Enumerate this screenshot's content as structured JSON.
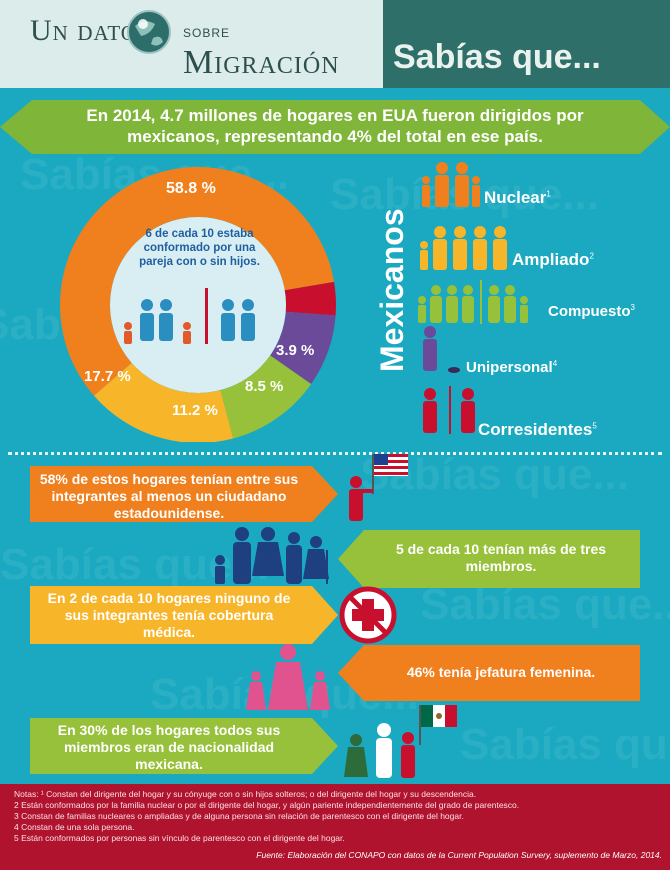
{
  "header": {
    "brand_line1": "Un dato",
    "brand_line2": "sobre",
    "brand_line3": "Migración",
    "title": "Sabías que..."
  },
  "banner": {
    "text": "En 2014, 4.7 millones de hogares en EUA fueron dirigidos por mexicanos, representando 4% del total en ese país."
  },
  "watermark": "Sabías que...",
  "donut": {
    "center_text": "6 de cada 10 estaba conformado por una pareja con o sin hijos.",
    "segments": [
      {
        "name": "Nuclear",
        "label": "58.8 %",
        "value": 58.8,
        "color": "#f07f1d"
      },
      {
        "name": "Ampliado",
        "label": "17.7 %",
        "value": 17.7,
        "color": "#f7b52a"
      },
      {
        "name": "Compuesto",
        "label": "11.2 %",
        "value": 11.2,
        "color": "#97c13a"
      },
      {
        "name": "Unipersonal",
        "label": "8.5 %",
        "value": 8.5,
        "color": "#6b4a9a"
      },
      {
        "name": "Corresidentes",
        "label": "3.9 %",
        "value": 3.9,
        "color": "#c8102e"
      }
    ]
  },
  "legend": {
    "title": "Mexicanos",
    "items": [
      {
        "label": "Nuclear",
        "note": "1",
        "color": "#f07f1d"
      },
      {
        "label": "Ampliado",
        "note": "2",
        "color": "#f7b52a"
      },
      {
        "label": "Compuesto",
        "note": "3",
        "color": "#97c13a"
      },
      {
        "label": "Unipersonal",
        "note": "4",
        "color": "#6b4a9a"
      },
      {
        "label": "Corresidentes",
        "note": "5",
        "color": "#c8102e"
      }
    ]
  },
  "facts": [
    {
      "text": "58% de estos hogares tenían entre sus integrantes al menos un ciudadano estadounidense.",
      "color": "#f07f1d"
    },
    {
      "text": "5 de cada 10 tenían más de tres miembros.",
      "color": "#97c13a"
    },
    {
      "text": "En 2 de cada 10 hogares ninguno de sus integrantes tenía cobertura médica.",
      "color": "#f7b52a"
    },
    {
      "text": "46% tenía jefatura femenina.",
      "color": "#f07f1d"
    },
    {
      "text": "En 30% de los hogares todos sus miembros eran de nacionalidad mexicana.",
      "color": "#97c13a"
    }
  ],
  "footer": {
    "notes": [
      "Notas: ¹ Constan del dirigente del hogar y su cónyuge con o sin hijos solteros; o del dirigente del hogar y su descendencia.",
      "2 Están conformados por la familia nuclear o por el dirigente del hogar, y algún pariente independientemente del grado de parentesco.",
      "3 Constan de familias nucleares o ampliadas y de alguna persona sin relación de parentesco con el dirigente del hogar.",
      "4 Constan de una sola persona.",
      "5 Están conformados por personas sin vínculo de parentesco con el dirigente del hogar."
    ],
    "source": "Fuente: Elaboración del CONAPO con datos de la Current Population Survery, suplemento de Marzo, 2014."
  },
  "colors": {
    "background": "#1aa9c0",
    "header_dark": "#2f6f6a",
    "banner": "#7fb539",
    "footer": "#b0132e"
  }
}
